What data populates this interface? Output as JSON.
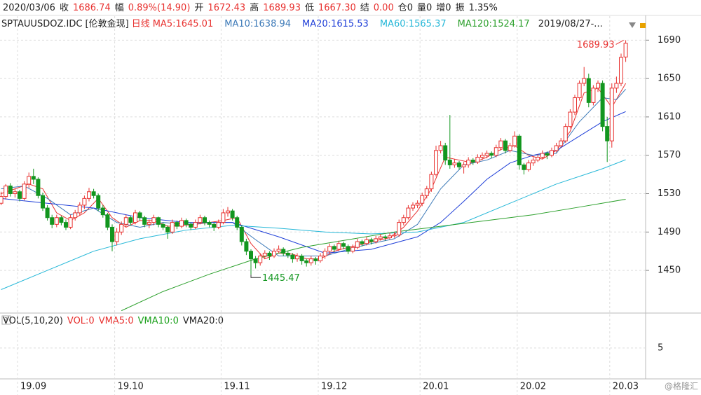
{
  "header": {
    "quote": [
      {
        "text": "2020/03/06",
        "color": "#222"
      },
      {
        "text": "收",
        "color": "#222"
      },
      {
        "text": "1686.74",
        "color": "#e8312f"
      },
      {
        "text": "幅",
        "color": "#222"
      },
      {
        "text": "0.89%(14.90)",
        "color": "#e8312f"
      },
      {
        "text": "开",
        "color": "#222"
      },
      {
        "text": "1672.43",
        "color": "#e8312f"
      },
      {
        "text": "高",
        "color": "#222"
      },
      {
        "text": "1689.93",
        "color": "#e8312f"
      },
      {
        "text": "低",
        "color": "#222"
      },
      {
        "text": "1667.30",
        "color": "#e8312f"
      },
      {
        "text": "结",
        "color": "#222"
      },
      {
        "text": "0.00",
        "color": "#e8312f"
      },
      {
        "text": "仓0",
        "color": "#222"
      },
      {
        "text": "量0",
        "color": "#222"
      },
      {
        "text": "增0",
        "color": "#222"
      },
      {
        "text": "振",
        "color": "#222"
      },
      {
        "text": "1.35%",
        "color": "#222"
      }
    ],
    "symbol": "SPTAUUSDOZ.IDC [伦敦金现]",
    "period": "日线",
    "range": "2019/08/27-...",
    "vol_labels": [
      {
        "text": "VOL(5,10,20)",
        "color": "#222"
      },
      {
        "text": "VOL:0",
        "color": "#e8312f"
      },
      {
        "text": "VMA5:0",
        "color": "#e8312f"
      },
      {
        "text": "VMA10:0",
        "color": "#1aa01a"
      },
      {
        "text": "VMA20:0",
        "color": "#222"
      }
    ],
    "watermark": "@格隆汇"
  },
  "chart_data": {
    "type": "candlestick",
    "up_color": "#e8312f",
    "down_color": "#12961f",
    "ylim": [
      1407,
      1699
    ],
    "yticks": [
      1450,
      1490,
      1530,
      1570,
      1610,
      1650,
      1690
    ],
    "vol_ylim": [
      0,
      8.7
    ],
    "vol_yticks": [
      5
    ],
    "xticks": [
      {
        "value": 4,
        "label": "19.09"
      },
      {
        "value": 25,
        "label": "19.10"
      },
      {
        "value": 48,
        "label": "19.11"
      },
      {
        "value": 69,
        "label": "19.12"
      },
      {
        "value": 91,
        "label": "20.01"
      },
      {
        "value": 112,
        "label": "20.02"
      },
      {
        "value": 132,
        "label": "20.03"
      }
    ],
    "annotations": [
      "1689.93",
      "1445.47"
    ],
    "candles": [
      [
        1520,
        1532,
        1518,
        1527
      ],
      [
        1527,
        1540,
        1524,
        1538
      ],
      [
        1538,
        1541,
        1527,
        1530
      ],
      [
        1530,
        1535,
        1526,
        1532
      ],
      [
        1532,
        1534,
        1522,
        1525
      ],
      [
        1525,
        1543,
        1523,
        1540
      ],
      [
        1540,
        1552,
        1536,
        1548
      ],
      [
        1548,
        1556,
        1540,
        1545
      ],
      [
        1545,
        1547,
        1525,
        1528
      ],
      [
        1528,
        1531,
        1512,
        1515
      ],
      [
        1515,
        1518,
        1502,
        1505
      ],
      [
        1505,
        1508,
        1494,
        1498
      ],
      [
        1498,
        1508,
        1495,
        1505
      ],
      [
        1505,
        1507,
        1497,
        1500
      ],
      [
        1500,
        1503,
        1492,
        1495
      ],
      [
        1495,
        1508,
        1493,
        1505
      ],
      [
        1505,
        1513,
        1502,
        1510
      ],
      [
        1510,
        1521,
        1507,
        1518
      ],
      [
        1518,
        1528,
        1514,
        1525
      ],
      [
        1525,
        1536,
        1522,
        1532
      ],
      [
        1532,
        1535,
        1525,
        1528
      ],
      [
        1528,
        1530,
        1512,
        1515
      ],
      [
        1515,
        1518,
        1505,
        1508
      ],
      [
        1508,
        1510,
        1492,
        1495
      ],
      [
        1495,
        1498,
        1470,
        1480
      ],
      [
        1480,
        1494,
        1476,
        1490
      ],
      [
        1490,
        1501,
        1487,
        1498
      ],
      [
        1498,
        1508,
        1495,
        1505
      ],
      [
        1505,
        1507,
        1497,
        1500
      ],
      [
        1500,
        1513,
        1498,
        1510
      ],
      [
        1510,
        1512,
        1502,
        1505
      ],
      [
        1505,
        1507,
        1495,
        1498
      ],
      [
        1498,
        1503,
        1494,
        1500
      ],
      [
        1500,
        1508,
        1497,
        1505
      ],
      [
        1505,
        1506,
        1495,
        1498
      ],
      [
        1498,
        1500,
        1492,
        1495
      ],
      [
        1495,
        1497,
        1483,
        1490
      ],
      [
        1490,
        1503,
        1488,
        1500
      ],
      [
        1500,
        1502,
        1493,
        1496
      ],
      [
        1496,
        1505,
        1494,
        1502
      ],
      [
        1502,
        1504,
        1495,
        1498
      ],
      [
        1498,
        1500,
        1492,
        1495
      ],
      [
        1495,
        1503,
        1493,
        1500
      ],
      [
        1500,
        1508,
        1498,
        1505
      ],
      [
        1505,
        1507,
        1497,
        1500
      ],
      [
        1500,
        1502,
        1495,
        1498
      ],
      [
        1498,
        1500,
        1491,
        1495
      ],
      [
        1495,
        1503,
        1493,
        1500
      ],
      [
        1500,
        1514,
        1498,
        1510
      ],
      [
        1510,
        1516,
        1506,
        1512
      ],
      [
        1512,
        1514,
        1502,
        1505
      ],
      [
        1505,
        1507,
        1492,
        1495
      ],
      [
        1495,
        1497,
        1476,
        1480
      ],
      [
        1480,
        1483,
        1466,
        1470
      ],
      [
        1470,
        1472,
        1445.47,
        1462
      ],
      [
        1462,
        1465,
        1452,
        1458
      ],
      [
        1458,
        1468,
        1455,
        1465
      ],
      [
        1465,
        1471,
        1462,
        1468
      ],
      [
        1468,
        1470,
        1461,
        1465
      ],
      [
        1465,
        1473,
        1463,
        1470
      ],
      [
        1470,
        1476,
        1468,
        1472
      ],
      [
        1472,
        1474,
        1465,
        1468
      ],
      [
        1468,
        1470,
        1463,
        1466
      ],
      [
        1466,
        1468,
        1458,
        1462
      ],
      [
        1462,
        1468,
        1459,
        1465
      ],
      [
        1465,
        1467,
        1456,
        1460
      ],
      [
        1460,
        1462,
        1454,
        1458
      ],
      [
        1458,
        1465,
        1455,
        1462
      ],
      [
        1462,
        1464,
        1456,
        1460
      ],
      [
        1460,
        1468,
        1458,
        1465
      ],
      [
        1465,
        1473,
        1462,
        1470
      ],
      [
        1470,
        1478,
        1467,
        1475
      ],
      [
        1475,
        1477,
        1469,
        1472
      ],
      [
        1472,
        1481,
        1470,
        1478
      ],
      [
        1478,
        1480,
        1472,
        1475
      ],
      [
        1475,
        1477,
        1467,
        1470
      ],
      [
        1470,
        1477,
        1468,
        1474
      ],
      [
        1474,
        1483,
        1472,
        1480
      ],
      [
        1480,
        1482,
        1475,
        1478
      ],
      [
        1478,
        1485,
        1476,
        1482
      ],
      [
        1482,
        1484,
        1477,
        1480
      ],
      [
        1480,
        1486,
        1478,
        1483
      ],
      [
        1483,
        1488,
        1481,
        1485
      ],
      [
        1485,
        1487,
        1481,
        1484
      ],
      [
        1484,
        1489,
        1482,
        1486
      ],
      [
        1486,
        1490,
        1484,
        1487
      ],
      [
        1487,
        1503,
        1485,
        1500
      ],
      [
        1500,
        1508,
        1497,
        1505
      ],
      [
        1505,
        1518,
        1503,
        1515
      ],
      [
        1515,
        1521,
        1512,
        1518
      ],
      [
        1518,
        1523,
        1515,
        1520
      ],
      [
        1520,
        1531,
        1517,
        1528
      ],
      [
        1528,
        1538,
        1525,
        1535
      ],
      [
        1535,
        1553,
        1532,
        1550
      ],
      [
        1550,
        1580,
        1548,
        1575
      ],
      [
        1575,
        1585,
        1572,
        1580
      ],
      [
        1580,
        1583,
        1560,
        1565
      ],
      [
        1565,
        1612,
        1556,
        1560
      ],
      [
        1560,
        1566,
        1557,
        1562
      ],
      [
        1562,
        1564,
        1555,
        1558
      ],
      [
        1558,
        1563,
        1551,
        1560
      ],
      [
        1560,
        1568,
        1557,
        1565
      ],
      [
        1565,
        1567,
        1560,
        1563
      ],
      [
        1563,
        1571,
        1561,
        1568
      ],
      [
        1568,
        1573,
        1565,
        1570
      ],
      [
        1570,
        1575,
        1567,
        1572
      ],
      [
        1572,
        1574,
        1567,
        1570
      ],
      [
        1570,
        1581,
        1568,
        1578
      ],
      [
        1578,
        1588,
        1575,
        1585
      ],
      [
        1585,
        1587,
        1572,
        1575
      ],
      [
        1575,
        1583,
        1573,
        1580
      ],
      [
        1580,
        1595,
        1578,
        1590
      ],
      [
        1590,
        1592,
        1555,
        1560
      ],
      [
        1560,
        1562,
        1550,
        1555
      ],
      [
        1555,
        1565,
        1553,
        1562
      ],
      [
        1562,
        1568,
        1559,
        1565
      ],
      [
        1565,
        1571,
        1563,
        1568
      ],
      [
        1568,
        1575,
        1566,
        1572
      ],
      [
        1572,
        1574,
        1566,
        1570
      ],
      [
        1570,
        1578,
        1568,
        1575
      ],
      [
        1575,
        1583,
        1573,
        1580
      ],
      [
        1580,
        1588,
        1578,
        1585
      ],
      [
        1585,
        1603,
        1583,
        1600
      ],
      [
        1600,
        1618,
        1598,
        1615
      ],
      [
        1615,
        1633,
        1612,
        1630
      ],
      [
        1630,
        1648,
        1627,
        1645
      ],
      [
        1645,
        1662,
        1642,
        1650
      ],
      [
        1650,
        1655,
        1620,
        1625
      ],
      [
        1625,
        1643,
        1622,
        1640
      ],
      [
        1640,
        1648,
        1636,
        1645
      ],
      [
        1645,
        1648,
        1595,
        1600
      ],
      [
        1600,
        1610,
        1563,
        1585
      ],
      [
        1585,
        1645,
        1578,
        1640
      ],
      [
        1640,
        1652,
        1635,
        1645
      ],
      [
        1645,
        1676,
        1642,
        1672
      ],
      [
        1672.43,
        1689.93,
        1667.3,
        1686.74
      ]
    ],
    "series": [
      {
        "name": "MA5:1645.01",
        "color": "#e8312f",
        "x": [
          0,
          3,
          6,
          9,
          12,
          15,
          18,
          21,
          24,
          27,
          30,
          33,
          36,
          39,
          42,
          45,
          48,
          51,
          54,
          57,
          60,
          63,
          66,
          69,
          72,
          75,
          78,
          81,
          84,
          87,
          90,
          93,
          96,
          99,
          102,
          105,
          108,
          111,
          114,
          117,
          120,
          123,
          126,
          129,
          132,
          135
        ],
        "values": [
          1530,
          1535,
          1540,
          1535,
          1510,
          1502,
          1510,
          1525,
          1505,
          1495,
          1502,
          1502,
          1496,
          1497,
          1498,
          1500,
          1502,
          1505,
          1478,
          1462,
          1468,
          1467,
          1462,
          1462,
          1470,
          1474,
          1477,
          1481,
          1484,
          1495,
          1512,
          1535,
          1568,
          1565,
          1562,
          1568,
          1576,
          1580,
          1570,
          1566,
          1575,
          1595,
          1635,
          1640,
          1620,
          1645.01
        ]
      },
      {
        "name": "MA10:1638.94",
        "color": "#3d7ab8",
        "x": [
          0,
          5,
          10,
          15,
          20,
          25,
          30,
          35,
          40,
          45,
          50,
          55,
          60,
          65,
          70,
          75,
          80,
          85,
          90,
          95,
          100,
          105,
          110,
          115,
          120,
          125,
          130,
          133,
          135
        ],
        "values": [
          1535,
          1538,
          1525,
          1508,
          1515,
          1500,
          1495,
          1500,
          1498,
          1500,
          1500,
          1482,
          1465,
          1465,
          1465,
          1472,
          1478,
          1483,
          1498,
          1535,
          1560,
          1565,
          1575,
          1570,
          1572,
          1605,
          1630,
          1628,
          1638.94
        ]
      },
      {
        "name": "MA20:1615.53",
        "color": "#1f3fd8",
        "x": [
          0,
          10,
          20,
          30,
          40,
          50,
          60,
          70,
          80,
          90,
          95,
          100,
          105,
          110,
          115,
          120,
          125,
          130,
          135
        ],
        "values": [
          1525,
          1520,
          1515,
          1505,
          1500,
          1500,
          1485,
          1468,
          1472,
          1485,
          1500,
          1522,
          1545,
          1562,
          1570,
          1575,
          1590,
          1605,
          1615.53
        ]
      },
      {
        "name": "MA60:1565.37",
        "color": "#27b8d8",
        "x": [
          0,
          10,
          20,
          30,
          40,
          50,
          60,
          70,
          80,
          90,
          100,
          110,
          120,
          130,
          135
        ],
        "values": [
          1430,
          1450,
          1470,
          1483,
          1492,
          1497,
          1494,
          1490,
          1488,
          1490,
          1500,
          1520,
          1540,
          1556,
          1565.37
        ]
      },
      {
        "name": "MA120:1524.17",
        "color": "#2ca02c",
        "x": [
          26,
          35,
          45,
          55,
          65,
          75,
          85,
          95,
          105,
          115,
          125,
          135
        ],
        "values": [
          1408,
          1428,
          1446,
          1462,
          1474,
          1482,
          1490,
          1496,
          1502,
          1508,
          1516,
          1524.17
        ]
      }
    ]
  }
}
